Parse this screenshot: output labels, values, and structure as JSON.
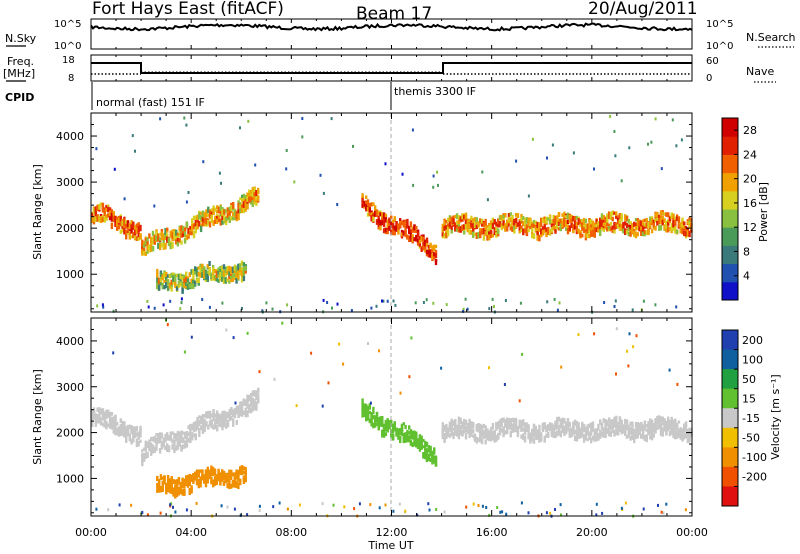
{
  "header": {
    "radar": "Fort Hays East (fitACF)",
    "beam": "Beam 17",
    "date": "20/Aug/2011"
  },
  "labels": {
    "nsky": "N.Sky",
    "nsky_ticks": [
      "10^5",
      "10^0"
    ],
    "nsearch": "N.Search",
    "freq": "Freq.",
    "freq_unit": "[MHz]",
    "freq_ticks": [
      "18",
      "8"
    ],
    "nave": "Nave",
    "nave_ticks": [
      "60",
      "0"
    ],
    "cpid": "CPID"
  },
  "cpid_segments": [
    {
      "label": "normal (fast) 151 IF",
      "start_hour": 0
    },
    {
      "label": "themis 3300 IF",
      "start_hour": 12
    }
  ],
  "colors": {
    "power": [
      "#1010c8",
      "#2050b0",
      "#3a7a7a",
      "#4a9a5a",
      "#8ac040",
      "#d8d020",
      "#f0a000",
      "#f06000",
      "#e02000",
      "#d00000"
    ],
    "velocity": [
      "#2040b0",
      "#1060a0",
      "#20a040",
      "#60c030",
      "#c8c8c8",
      "#f0c000",
      "#f09000",
      "#f05000",
      "#e01010"
    ]
  },
  "chart_data": [
    {
      "type": "heatmap",
      "panel": "power",
      "xlabel": "",
      "ylabel": "Slant Range [km]",
      "xlim": [
        0,
        24
      ],
      "ylim": [
        180,
        4500
      ],
      "yticks": [
        1000,
        2000,
        3000,
        4000
      ],
      "colorbar_label": "Power [dB]",
      "colorbar_ticks": [
        4,
        8,
        12,
        16,
        20,
        24,
        28
      ],
      "colorbar_range": [
        0,
        30
      ],
      "echo_bands": [
        {
          "t0": 0.0,
          "t1": 2.0,
          "r0": 2350,
          "r1": 1950,
          "power": 22
        },
        {
          "t0": 2.0,
          "t1": 6.7,
          "r0": 1550,
          "r1": 2700,
          "power": 18
        },
        {
          "t0": 2.6,
          "t1": 6.2,
          "r0": 820,
          "r1": 1120,
          "power": 14
        },
        {
          "t0": 10.8,
          "t1": 13.8,
          "r0": 2500,
          "r1": 1500,
          "power": 24
        },
        {
          "t0": 14.0,
          "t1": 24.0,
          "r0": 2050,
          "r1": 2100,
          "power": 20
        }
      ]
    },
    {
      "type": "heatmap",
      "panel": "velocity",
      "xlabel": "Time UT",
      "ylabel": "Slant Range [km]",
      "xlim": [
        0,
        24
      ],
      "ylim": [
        180,
        4500
      ],
      "xticks": [
        "00:00",
        "04:00",
        "08:00",
        "12:00",
        "16:00",
        "20:00",
        "00:00"
      ],
      "yticks": [
        1000,
        2000,
        3000,
        4000
      ],
      "colorbar_label": "Velocity [m s⁻¹]",
      "colorbar_ticks": [
        200,
        100,
        50,
        15,
        -15,
        -50,
        -100,
        -200
      ],
      "echo_bands": [
        {
          "t0": 0.0,
          "t1": 2.0,
          "r0": 2350,
          "r1": 1950,
          "velocity": 0
        },
        {
          "t0": 2.0,
          "t1": 6.7,
          "r0": 1550,
          "r1": 2700,
          "velocity": 0
        },
        {
          "t0": 2.6,
          "t1": 6.2,
          "r0": 820,
          "r1": 1120,
          "velocity": -80
        },
        {
          "t0": 10.8,
          "t1": 13.8,
          "r0": 2500,
          "r1": 1500,
          "velocity": 40
        },
        {
          "t0": 14.0,
          "t1": 24.0,
          "r0": 2050,
          "r1": 2100,
          "velocity": 0
        }
      ]
    }
  ]
}
